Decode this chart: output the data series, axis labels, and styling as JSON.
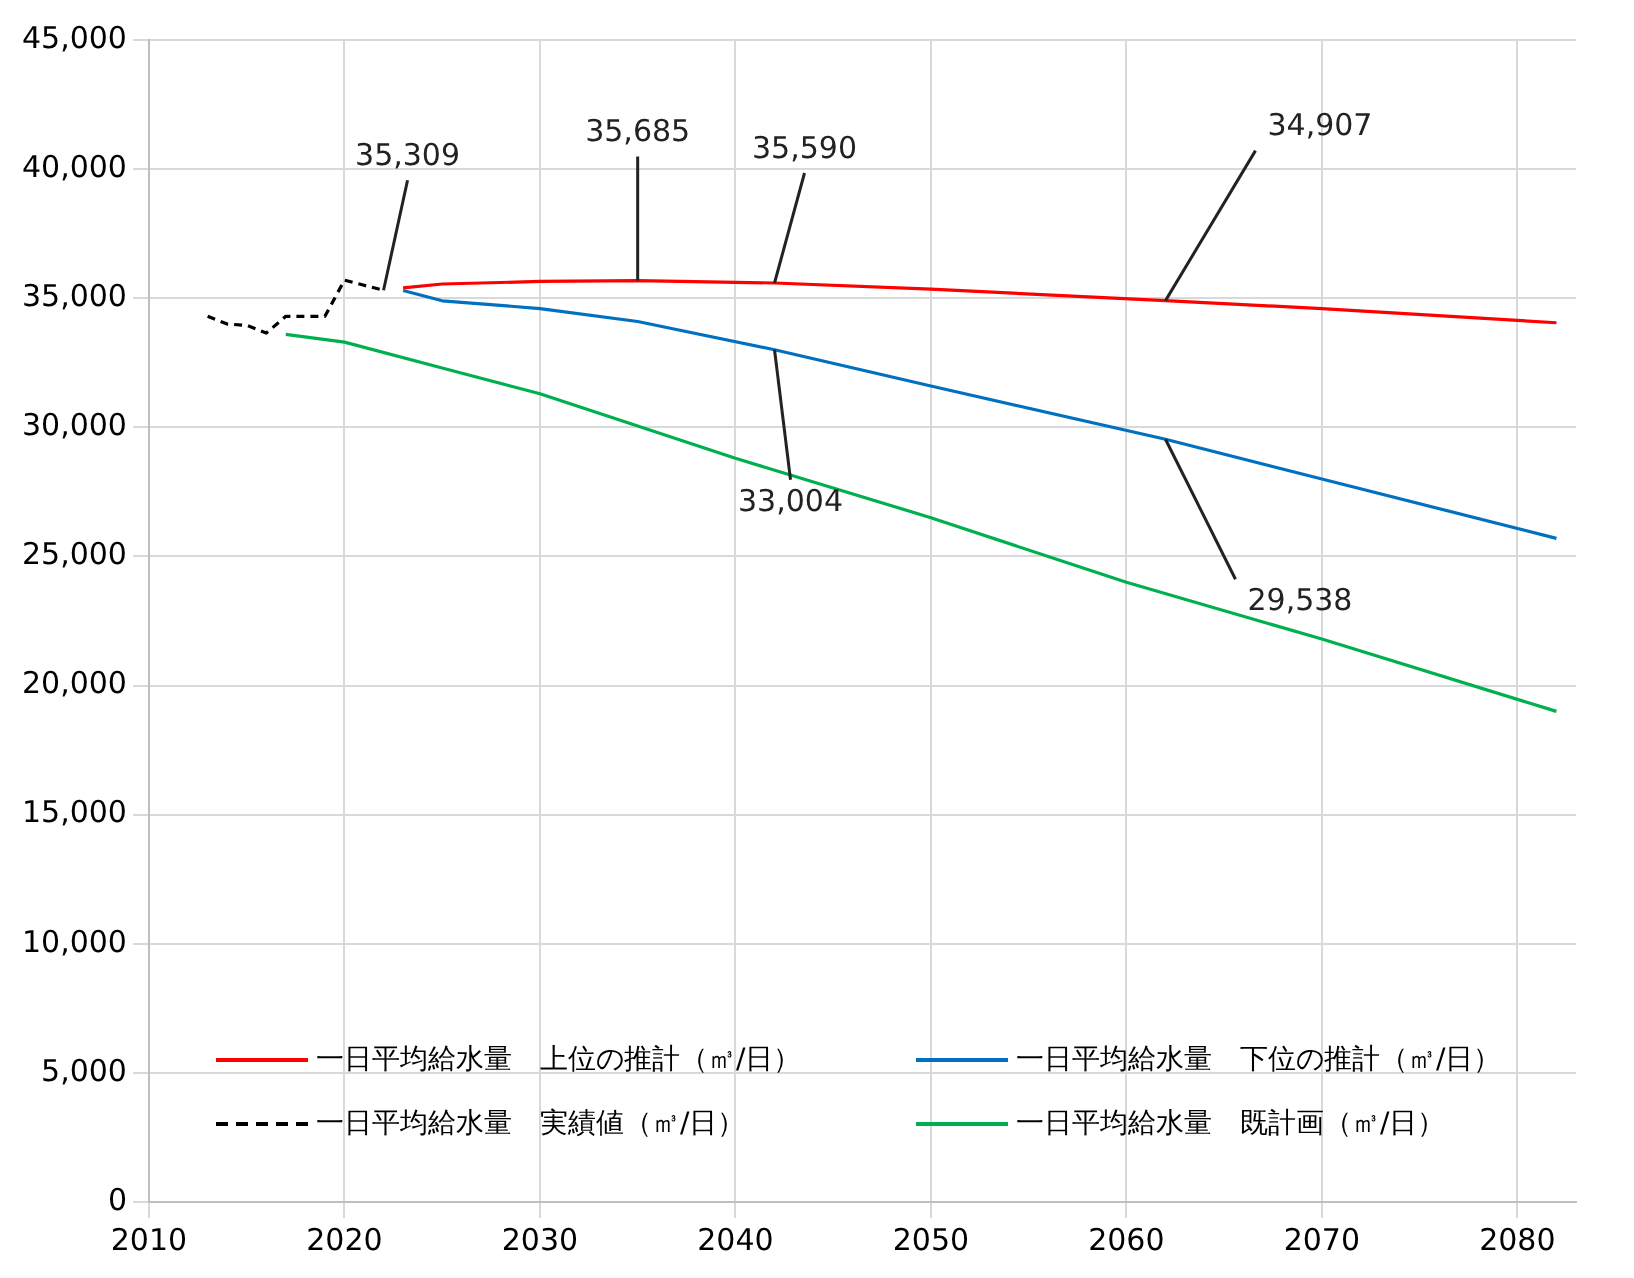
{
  "chart_data": {
    "type": "line",
    "x": [
      2023,
      2025,
      2030,
      2035,
      2042,
      2050,
      2062,
      2070,
      2082
    ],
    "series": [
      {
        "name": "一日平均給水量　上位の推計（㎥/日）",
        "color": "#ff0000",
        "values": [
          35400,
          35550,
          35650,
          35685,
          35590,
          35350,
          34907,
          34600,
          34050
        ]
      },
      {
        "name": "一日平均給水量　下位の推計（㎥/日）",
        "color": "#0070c0",
        "values": [
          35300,
          34900,
          34600,
          34100,
          33004,
          31600,
          29538,
          28000,
          25700
        ]
      },
      {
        "name": "一日平均給水量　実績値（㎥/日）",
        "color": "#000000",
        "line_style": "dashed",
        "x": [
          2013,
          2014,
          2015,
          2016,
          2017,
          2018,
          2019,
          2020,
          2021,
          2022
        ],
        "values": [
          34300,
          34000,
          33950,
          33650,
          34300,
          34300,
          34300,
          35700,
          35500,
          35309
        ]
      },
      {
        "name": "一日平均給水量　既計画（㎥/日）",
        "color": "#00b050",
        "x": [
          2017,
          2020,
          2025,
          2030,
          2040,
          2050,
          2060,
          2070,
          2082
        ],
        "values": [
          33600,
          33300,
          32300,
          31300,
          28800,
          26500,
          24000,
          21800,
          19000
        ]
      }
    ],
    "annotations": [
      {
        "text": "35,309",
        "x": 2022,
        "y": 35309
      },
      {
        "text": "35,685",
        "x": 2035,
        "y": 35685
      },
      {
        "text": "35,590",
        "x": 2042,
        "y": 35590
      },
      {
        "text": "34,907",
        "x": 2062,
        "y": 34907
      },
      {
        "text": "33,004",
        "x": 2042,
        "y": 33004
      },
      {
        "text": "29,538",
        "x": 2062,
        "y": 29538
      }
    ],
    "xlim": [
      2010,
      2083
    ],
    "xticks": [
      2010,
      2020,
      2030,
      2040,
      2050,
      2060,
      2070,
      2080
    ],
    "ylim": [
      0,
      45000
    ],
    "yticks": [
      0,
      {
        "value": 5000,
        "label": "5,000"
      },
      {
        "value": 10000,
        "label": "10,000"
      },
      {
        "value": 15000,
        "label": "15,000"
      },
      {
        "value": 20000,
        "label": "20,000"
      },
      {
        "value": 25000,
        "label": "25,000"
      },
      {
        "value": 30000,
        "label": "30,000"
      },
      {
        "value": 35000,
        "label": "35,000"
      },
      {
        "value": 40000,
        "label": "40,000"
      },
      {
        "value": 45000,
        "label": "45,000"
      }
    ],
    "grid": true,
    "legend": "bottom",
    "marker": "none"
  }
}
